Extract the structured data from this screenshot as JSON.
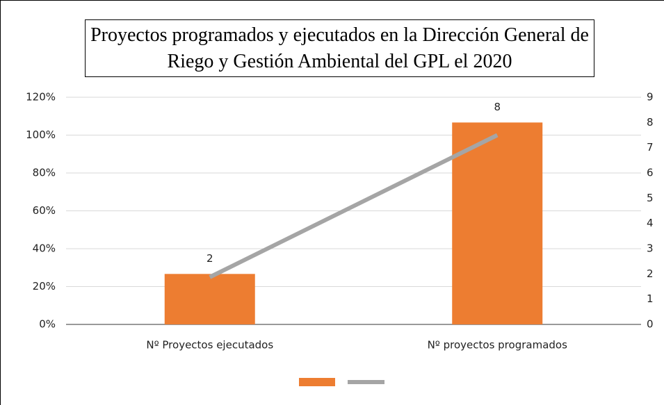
{
  "chart_data": {
    "type": "bar",
    "title": "Proyectos programados y ejecutados en la Dirección General de Riego y Gestión Ambiental del GPL el 2020",
    "categories": [
      "Nº Proyectos ejecutados",
      "Nº proyectos programados"
    ],
    "series": [
      {
        "type": "bar",
        "color": "#ed7d31",
        "axis": "y2",
        "values": [
          2,
          8
        ]
      },
      {
        "type": "line",
        "color": "#a5a5a5",
        "values": [
          25,
          100
        ]
      }
    ],
    "ylim": [
      0,
      120
    ],
    "yticks": [
      {
        "value": 0,
        "label": "0%"
      },
      {
        "value": 20,
        "label": "20%"
      },
      {
        "value": 40,
        "label": "40%"
      },
      {
        "value": 60,
        "label": "60%"
      },
      {
        "value": 80,
        "label": "80%"
      },
      {
        "value": 100,
        "label": "100%"
      },
      {
        "value": 120,
        "label": "120%"
      }
    ],
    "y2lim": [
      0,
      9
    ],
    "y2ticks": [
      0,
      1,
      2,
      3,
      4,
      5,
      6,
      7,
      8,
      9
    ],
    "grid": true
  }
}
